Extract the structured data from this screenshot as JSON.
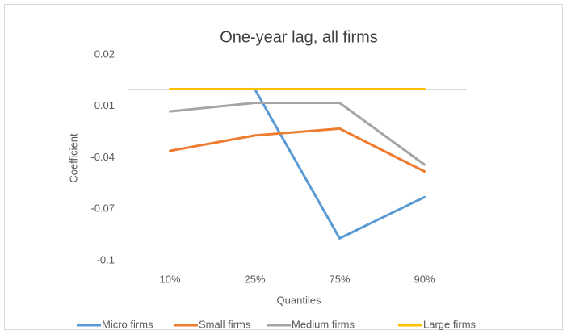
{
  "chart_data": {
    "type": "line",
    "title": "One-year lag, all firms",
    "x_label": "Quantiles",
    "y_label": "Coefficient",
    "categories": [
      "10%",
      "25%",
      "75%",
      "90%"
    ],
    "series": [
      {
        "name": "Micro firms",
        "color": "#5b9bd5",
        "values": [
          null,
          0,
          -0.087,
          -0.063
        ]
      },
      {
        "name": "Small firms",
        "color": "#ed7d31",
        "values": [
          -0.036,
          -0.027,
          -0.023,
          -0.048
        ]
      },
      {
        "name": "Medium firms",
        "color": "#a5a5a5",
        "values": [
          -0.013,
          -0.008,
          -0.008,
          -0.044
        ]
      },
      {
        "name": "Large firms",
        "color": "#ffc000",
        "values": [
          0,
          0,
          0,
          0
        ]
      }
    ],
    "ylim": [
      -0.1,
      0.02
    ],
    "yticks": [
      0.02,
      -0.01,
      -0.04,
      -0.07,
      -0.1
    ],
    "grid": false,
    "legend": "bottom"
  }
}
